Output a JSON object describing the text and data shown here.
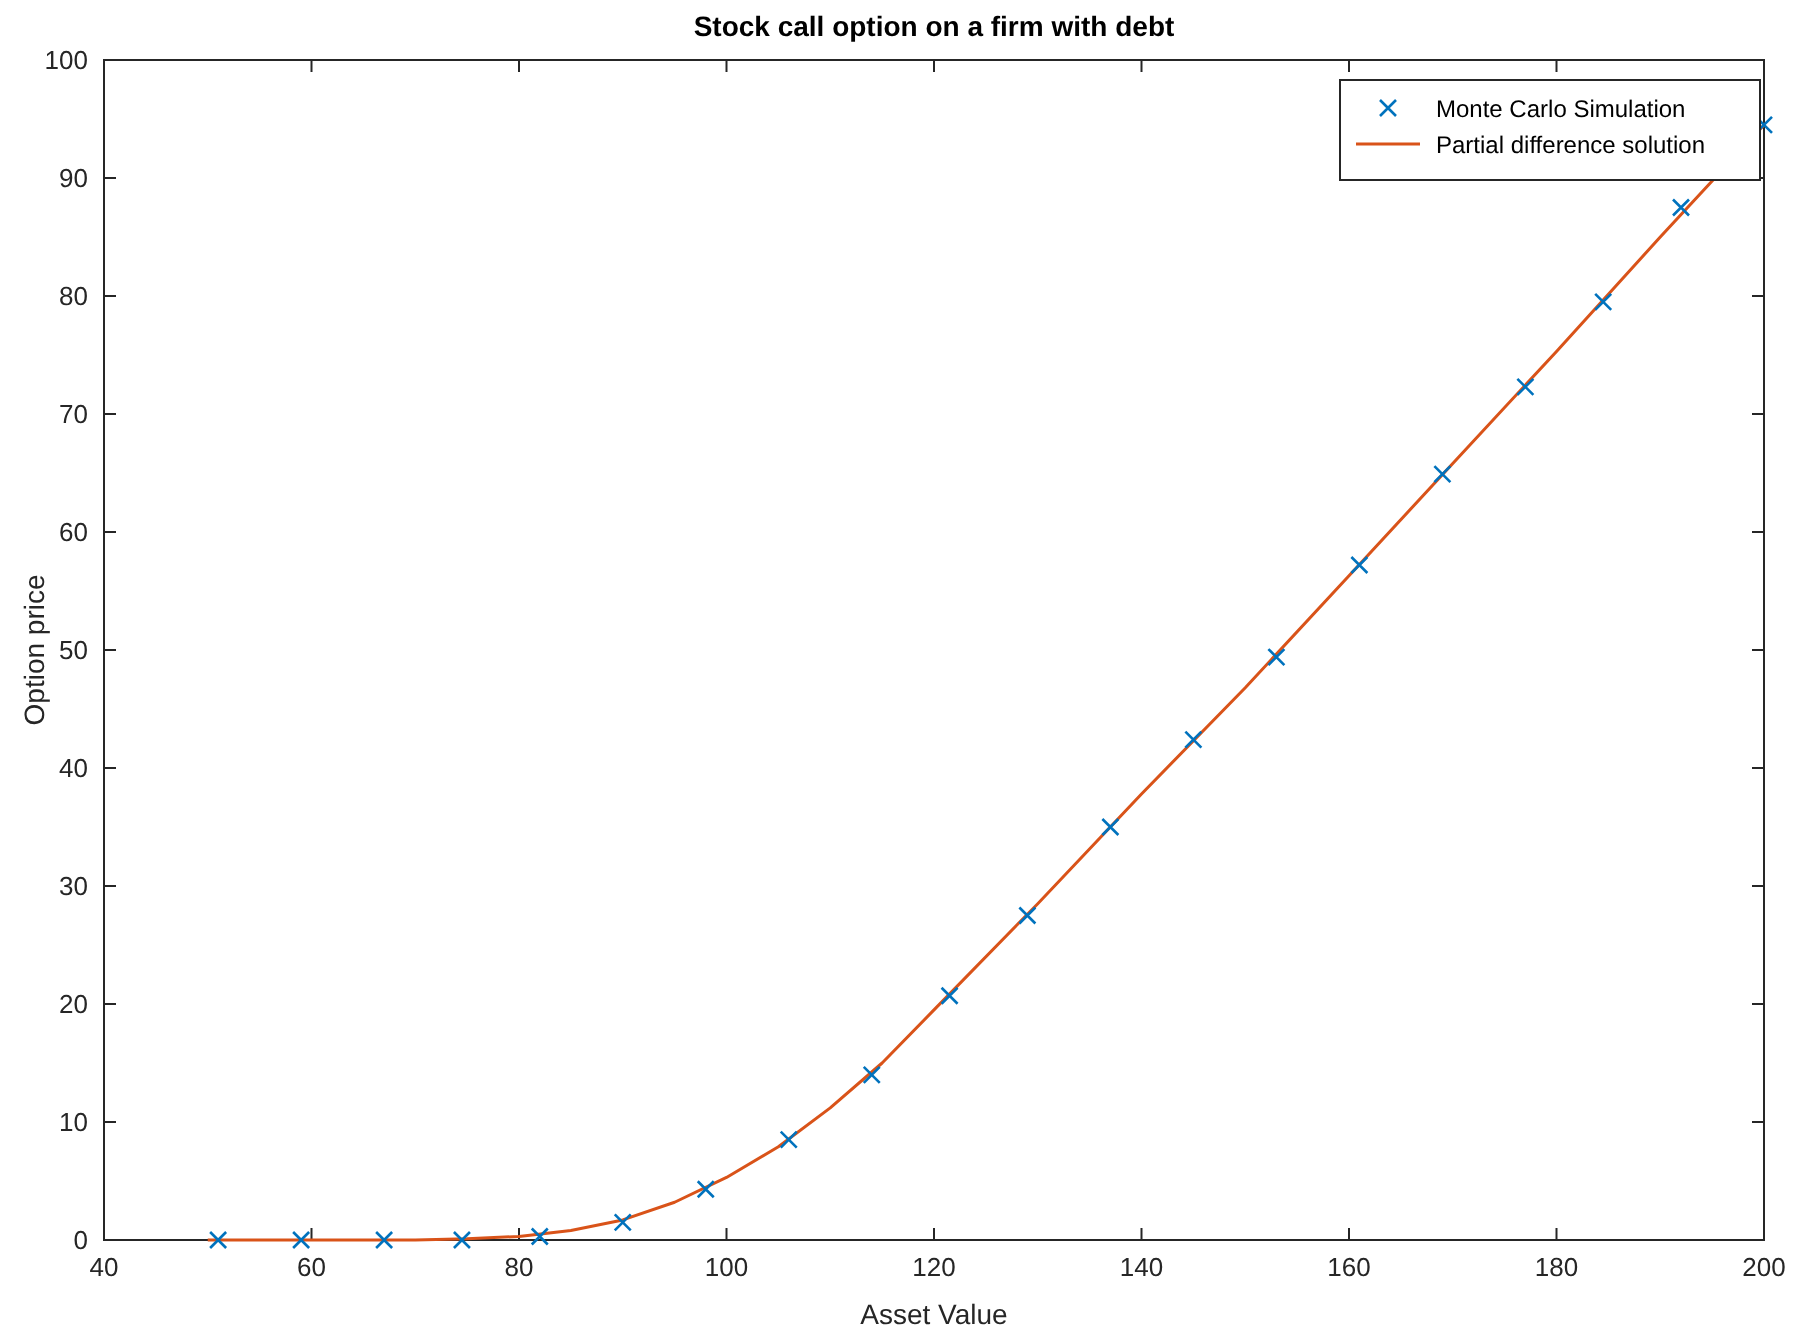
{
  "chart_data": {
    "type": "line",
    "title": "Stock call option on a firm with debt",
    "xlabel": "Asset Value",
    "ylabel": "Option price",
    "xlim": [
      40,
      200
    ],
    "xticks": [
      40,
      60,
      80,
      100,
      120,
      140,
      160,
      180,
      200
    ],
    "ylim": [
      0,
      100
    ],
    "yticks": [
      0,
      10,
      20,
      30,
      40,
      50,
      60,
      70,
      80,
      90,
      100
    ],
    "grid": false,
    "legend": "top right",
    "series": [
      {
        "name": "Monte Carlo Simulation",
        "type": "scatter",
        "marker": "cross",
        "color": "#0072bd",
        "x": [
          51,
          59,
          67,
          74.5,
          82,
          90,
          98,
          106,
          114,
          121.5,
          129,
          137,
          145,
          153,
          161,
          169,
          177,
          184.5,
          192,
          200
        ],
        "values": [
          0,
          0,
          0,
          0,
          0.3,
          1.5,
          4.3,
          8.5,
          14,
          20.7,
          27.5,
          35,
          42.4,
          49.4,
          57.2,
          64.9,
          72.3,
          79.5,
          87.5,
          94.5
        ]
      },
      {
        "name": "Partial difference solution",
        "color": "#d95319",
        "x": [
          50,
          60,
          70,
          75,
          80,
          85,
          90,
          95,
          100,
          105,
          110,
          115,
          120,
          130,
          140,
          150,
          160,
          170,
          180,
          190,
          200
        ],
        "values": [
          0,
          0,
          0,
          0.1,
          0.3,
          0.8,
          1.7,
          3.2,
          5.3,
          7.9,
          11.2,
          15,
          19.5,
          28.5,
          37.8,
          46.8,
          56.3,
          65.8,
          75.3,
          85,
          94.5
        ]
      }
    ]
  }
}
